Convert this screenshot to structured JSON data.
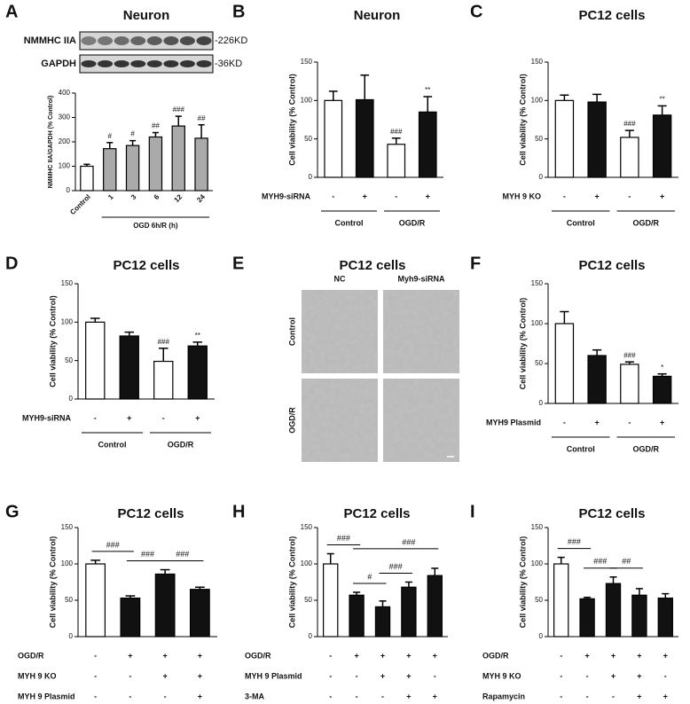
{
  "chart_data": [
    {
      "type": "bar",
      "panel": "A",
      "title": "Neuron",
      "blot": [
        {
          "name": "NMMHC IIA",
          "size": "-226KD"
        },
        {
          "name": "GAPDH",
          "size": "-36KD"
        }
      ],
      "ylabel": "NMMHC IIA/GAPDH (% Control)",
      "xlabel": "OGD 6h/R (h)",
      "categories": [
        "Control",
        "1",
        "3",
        "6",
        "12",
        "24"
      ],
      "values": [
        100,
        172,
        185,
        220,
        265,
        215
      ],
      "errors": [
        8,
        25,
        20,
        18,
        40,
        55
      ],
      "annotations": [
        null,
        "#",
        "#",
        "##",
        "###",
        "##"
      ],
      "colors": [
        "#ffffff",
        "#aaaaaa",
        "#aaaaaa",
        "#aaaaaa",
        "#aaaaaa",
        "#aaaaaa"
      ],
      "ylim": [
        0,
        400
      ],
      "yticks": [
        0,
        100,
        200,
        300,
        400
      ]
    },
    {
      "type": "bar",
      "panel": "B",
      "title": "Neuron",
      "ylabel": "Cell viability (% Control)",
      "row_label": "MYH9-siRNA",
      "categories": [
        "-",
        "+",
        "-",
        "+"
      ],
      "groups": [
        "Control",
        "OGD/R"
      ],
      "values": [
        100,
        101,
        43,
        85
      ],
      "errors": [
        12,
        32,
        8,
        20
      ],
      "annotations": [
        null,
        null,
        "###",
        "**"
      ],
      "colors": [
        "#ffffff",
        "#111111",
        "#ffffff",
        "#111111"
      ],
      "ylim": [
        0,
        150
      ],
      "yticks": [
        0,
        50,
        100,
        150
      ]
    },
    {
      "type": "bar",
      "panel": "C",
      "title": "PC12 cells",
      "ylabel": "Cell viability (% Control)",
      "row_label": "MYH 9 KO",
      "categories": [
        "-",
        "+",
        "-",
        "+"
      ],
      "groups": [
        "Control",
        "OGD/R"
      ],
      "values": [
        100,
        98,
        52,
        81
      ],
      "errors": [
        7,
        10,
        9,
        12
      ],
      "annotations": [
        null,
        null,
        "###",
        "**"
      ],
      "colors": [
        "#ffffff",
        "#111111",
        "#ffffff",
        "#111111"
      ],
      "ylim": [
        0,
        150
      ],
      "yticks": [
        0,
        50,
        100,
        150
      ]
    },
    {
      "type": "bar",
      "panel": "D",
      "title": "PC12 cells",
      "ylabel": "Cell viability (% Control)",
      "row_label": "MYH9-siRNA",
      "categories": [
        "-",
        "+",
        "-",
        "+"
      ],
      "groups": [
        "Control",
        "OGD/R"
      ],
      "values": [
        100,
        82,
        49,
        69
      ],
      "errors": [
        5,
        5,
        17,
        5
      ],
      "annotations": [
        null,
        null,
        "###",
        "**"
      ],
      "colors": [
        "#ffffff",
        "#111111",
        "#ffffff",
        "#111111"
      ],
      "ylim": [
        0,
        150
      ],
      "yticks": [
        0,
        50,
        100,
        150
      ]
    },
    {
      "type": "image",
      "panel": "E",
      "title": "PC12 cells",
      "columns": [
        "NC",
        "Myh9-siRNA"
      ],
      "rows": [
        "Control",
        "OGD/R"
      ]
    },
    {
      "type": "bar",
      "panel": "F",
      "title": "PC12 cells",
      "ylabel": "Cell viability (% Control)",
      "row_label": "MYH9 Plasmid",
      "categories": [
        "-",
        "+",
        "-",
        "+"
      ],
      "groups": [
        "Control",
        "OGD/R"
      ],
      "values": [
        100,
        60,
        49,
        34
      ],
      "errors": [
        15,
        7,
        3,
        3
      ],
      "annotations": [
        null,
        null,
        "###",
        "*"
      ],
      "colors": [
        "#ffffff",
        "#111111",
        "#ffffff",
        "#111111"
      ],
      "ylim": [
        0,
        150
      ],
      "yticks": [
        0,
        50,
        100,
        150
      ]
    },
    {
      "type": "bar",
      "panel": "G",
      "title": "PC12 cells",
      "ylabel": "Cell viability (% Control)",
      "conditions": [
        {
          "name": "OGD/R",
          "marks": [
            "-",
            "+",
            "+",
            "+"
          ]
        },
        {
          "name": "MYH 9 KO",
          "marks": [
            "-",
            "-",
            "+",
            "+"
          ]
        },
        {
          "name": "MYH 9 Plasmid",
          "marks": [
            "-",
            "-",
            "-",
            "+"
          ]
        }
      ],
      "values": [
        100,
        53,
        86,
        65
      ],
      "errors": [
        5,
        3,
        6,
        3
      ],
      "comparisons": [
        {
          "label": "###",
          "between": [
            0,
            1
          ]
        },
        {
          "label": "###",
          "between": [
            1,
            2
          ]
        },
        {
          "label": "###",
          "between": [
            2,
            3
          ]
        }
      ],
      "colors": [
        "#ffffff",
        "#111111",
        "#111111",
        "#111111"
      ],
      "ylim": [
        0,
        150
      ],
      "yticks": [
        0,
        50,
        100,
        150
      ]
    },
    {
      "type": "bar",
      "panel": "H",
      "title": "PC12 cells",
      "ylabel": "Cell viability (% Control)",
      "conditions": [
        {
          "name": "OGD/R",
          "marks": [
            "-",
            "+",
            "+",
            "+",
            "+"
          ]
        },
        {
          "name": "MYH 9 Plasmid",
          "marks": [
            "-",
            "-",
            "+",
            "+",
            "-"
          ]
        },
        {
          "name": "3-MA",
          "marks": [
            "-",
            "-",
            "-",
            "+",
            "+"
          ]
        }
      ],
      "values": [
        100,
        57,
        41,
        68,
        84
      ],
      "errors": [
        14,
        4,
        8,
        7,
        10
      ],
      "comparisons": [
        {
          "label": "###",
          "between": [
            0,
            1
          ]
        },
        {
          "label": "#",
          "between": [
            1,
            2
          ]
        },
        {
          "label": "###",
          "between": [
            2,
            3
          ]
        },
        {
          "label": "###",
          "between": [
            1,
            4
          ]
        }
      ],
      "colors": [
        "#ffffff",
        "#111111",
        "#111111",
        "#111111",
        "#111111"
      ],
      "ylim": [
        0,
        150
      ],
      "yticks": [
        0,
        50,
        100,
        150
      ]
    },
    {
      "type": "bar",
      "panel": "I",
      "title": "PC12 cells",
      "ylabel": "Cell viability (% Control)",
      "conditions": [
        {
          "name": "OGD/R",
          "marks": [
            "-",
            "+",
            "+",
            "+",
            "+"
          ]
        },
        {
          "name": "MYH 9 KO",
          "marks": [
            "-",
            "-",
            "+",
            "+",
            "-"
          ]
        },
        {
          "name": "Rapamycin",
          "marks": [
            "-",
            "-",
            "-",
            "+",
            "+"
          ]
        }
      ],
      "values": [
        100,
        52,
        73,
        57,
        53
      ],
      "errors": [
        9,
        2,
        9,
        9,
        6
      ],
      "comparisons": [
        {
          "label": "###",
          "between": [
            0,
            1
          ]
        },
        {
          "label": "###",
          "between": [
            1,
            2
          ]
        },
        {
          "label": "##",
          "between": [
            2,
            3
          ]
        }
      ],
      "colors": [
        "#ffffff",
        "#111111",
        "#111111",
        "#111111",
        "#111111"
      ],
      "ylim": [
        0,
        150
      ],
      "yticks": [
        0,
        50,
        100,
        150
      ]
    }
  ]
}
